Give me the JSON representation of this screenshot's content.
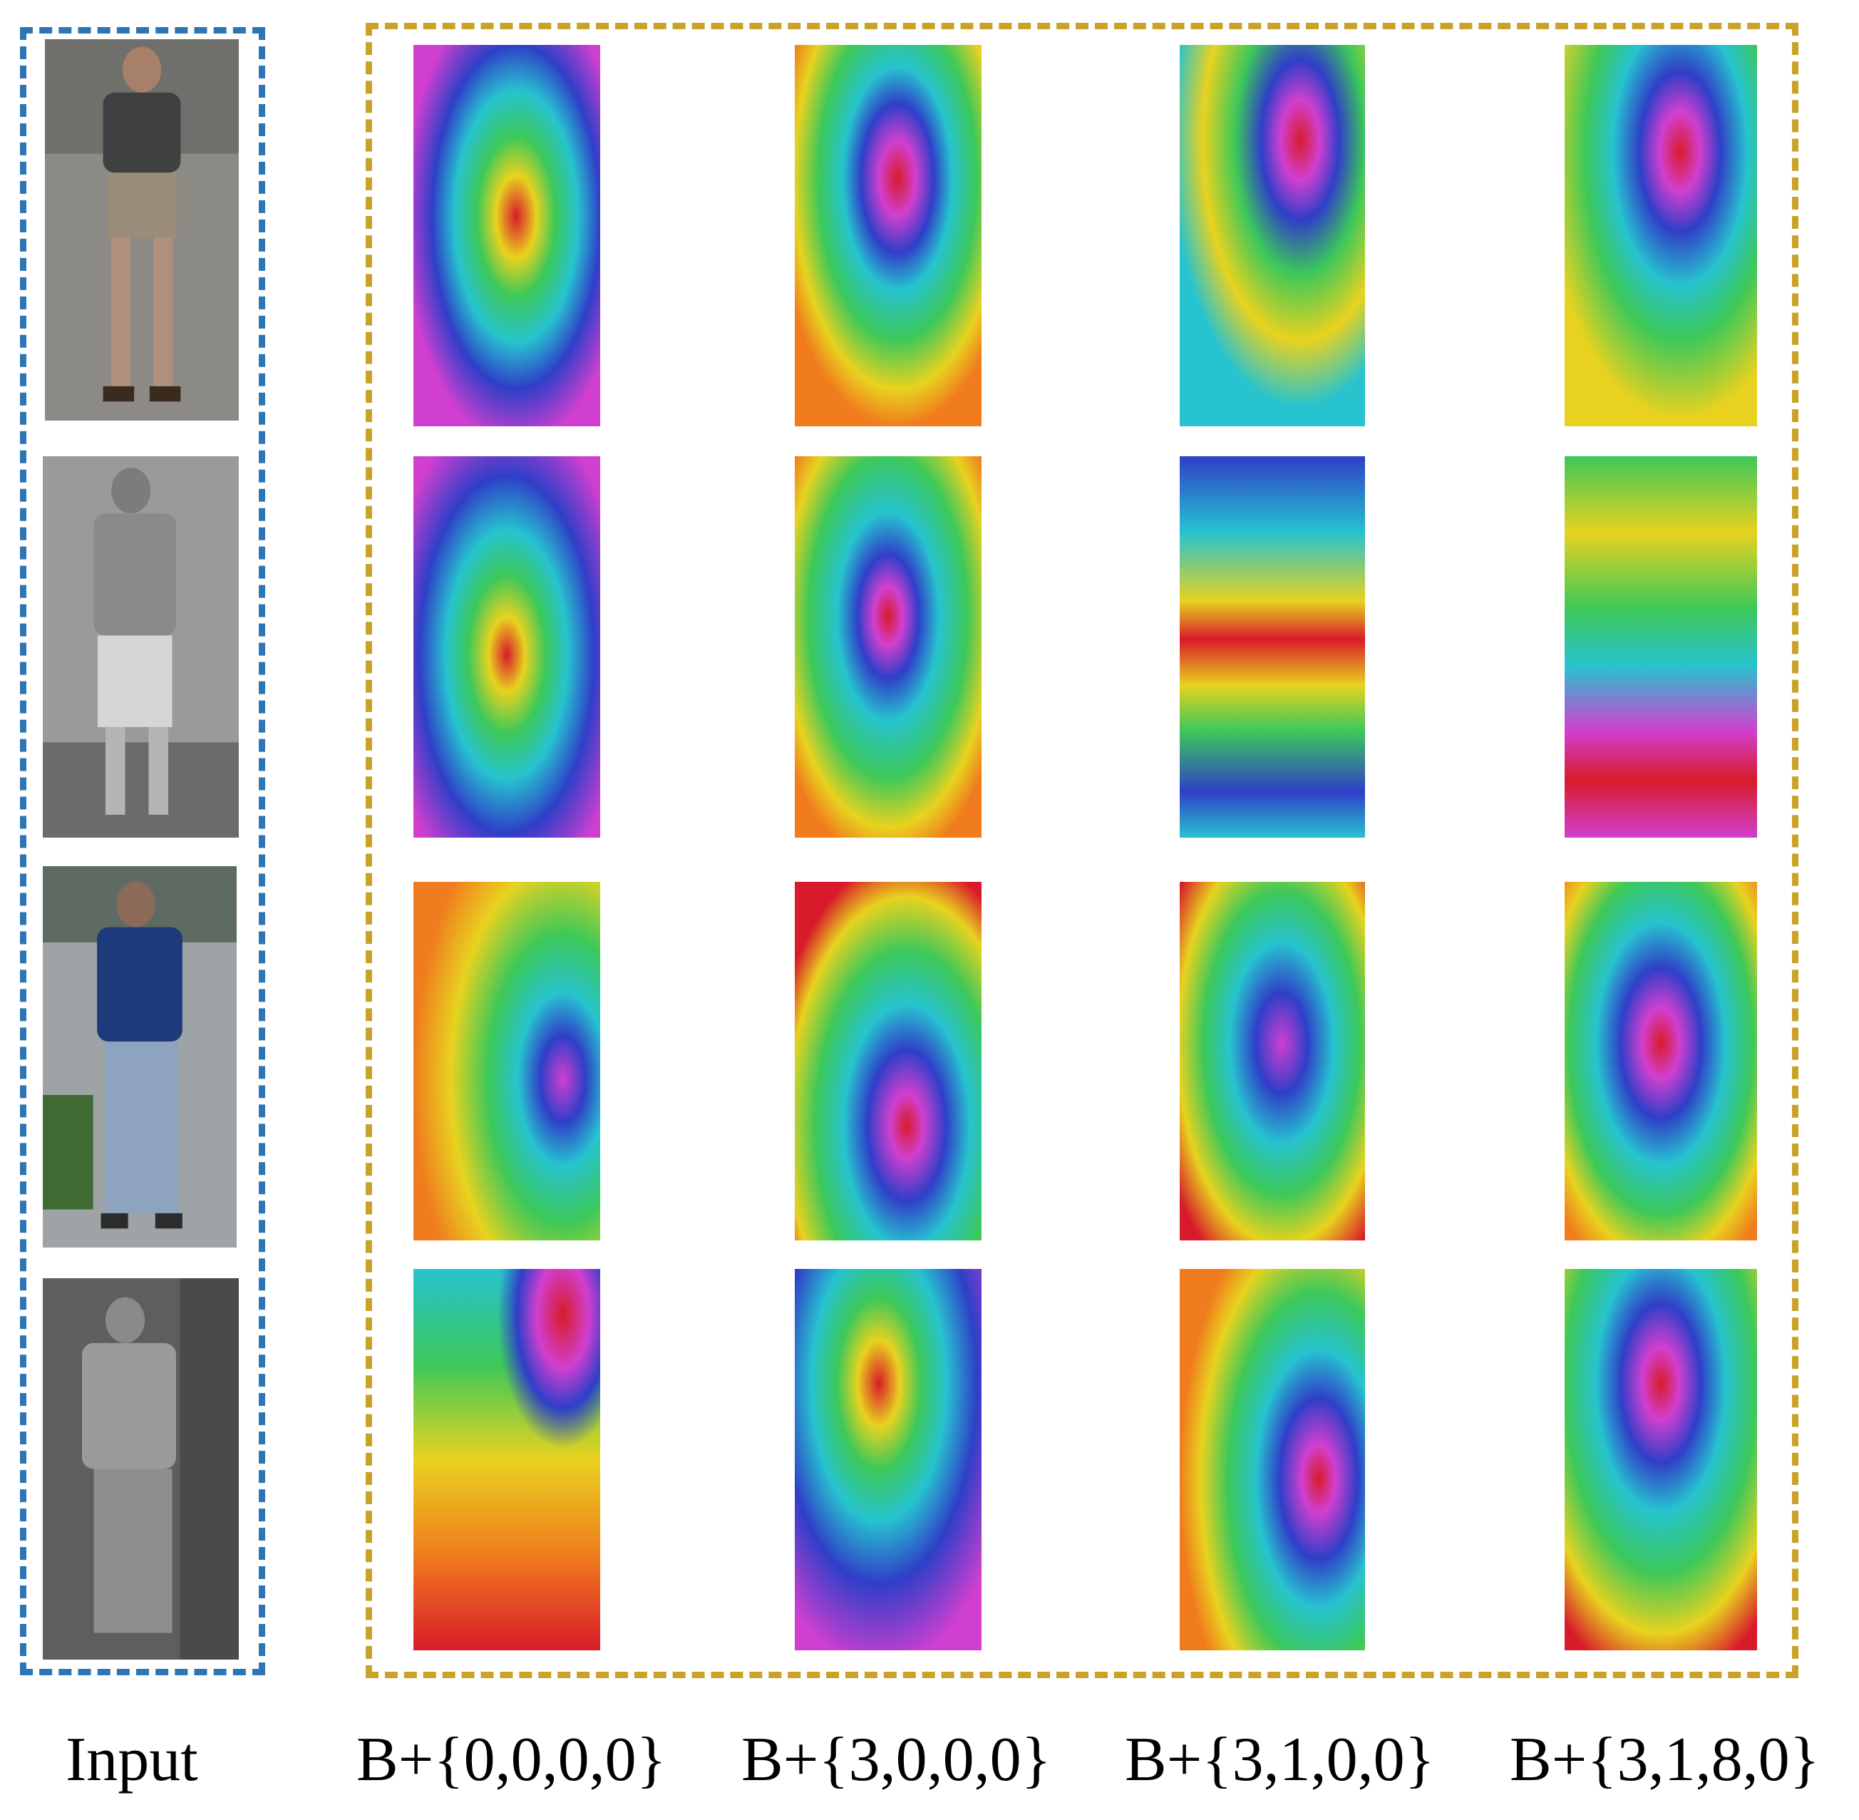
{
  "figure": {
    "captions": {
      "input": "Input",
      "columns": [
        "B+{0,0,0,0}",
        "B+{3,0,0,0}",
        "B+{3,1,0,0}",
        "B+{3,1,8,0}"
      ]
    },
    "colors": {
      "input_frame": "#2e75b6",
      "maps_frame": "#c9a227"
    },
    "heatmap_scale": [
      "#d81b2a",
      "#f07c1e",
      "#e8d21f",
      "#3cc85a",
      "#27c3cf",
      "#2f3fc8",
      "#d13fd0"
    ]
  }
}
